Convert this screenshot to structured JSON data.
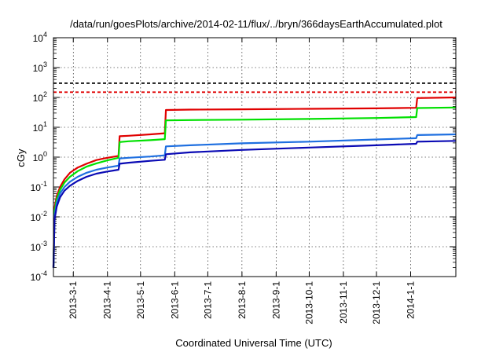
{
  "chart_data": {
    "type": "line",
    "title": "/data/run/goesPlots/archive/2014-02-11/flux/../bryn/366daysEarthAccumulated.plot",
    "xlabel": "Coordinated Universal Time (UTC)",
    "ylabel": "cGy",
    "y_scale": "log",
    "ylim": [
      0.0001,
      10000
    ],
    "y_ticks": [
      {
        "value": 0.0001,
        "base": "10",
        "exp": "-4"
      },
      {
        "value": 0.001,
        "base": "10",
        "exp": "-3"
      },
      {
        "value": 0.01,
        "base": "10",
        "exp": "-2"
      },
      {
        "value": 0.1,
        "base": "10",
        "exp": "-1"
      },
      {
        "value": 1,
        "base": "10",
        "exp": "0"
      },
      {
        "value": 10,
        "base": "10",
        "exp": "1"
      },
      {
        "value": 100,
        "base": "10",
        "exp": "2"
      },
      {
        "value": 1000,
        "base": "10",
        "exp": "3"
      },
      {
        "value": 10000,
        "base": "10",
        "exp": "4"
      }
    ],
    "xlim": [
      "2013-02-11",
      "2014-02-11"
    ],
    "x_ticks": [
      "2013-3-1",
      "2013-4-1",
      "2013-5-1",
      "2013-6-1",
      "2013-7-1",
      "2013-8-1",
      "2013-9-1",
      "2013-10-1",
      "2013-11-1",
      "2013-12-1",
      "2014-1-1"
    ],
    "x_tick_dates": [
      "2013-03-01",
      "2013-04-01",
      "2013-05-01",
      "2013-06-01",
      "2013-07-01",
      "2013-08-01",
      "2013-09-01",
      "2013-10-01",
      "2013-11-01",
      "2013-12-01",
      "2014-01-01"
    ],
    "grid": true,
    "reference_lines": [
      {
        "y": 300,
        "color": "#000000",
        "style": "dashed"
      },
      {
        "y": 150,
        "color": "#e00000",
        "style": "dashed"
      }
    ],
    "series": [
      {
        "color": "#e00000",
        "x": [
          "2013-02-11",
          "2013-02-12",
          "2013-02-14",
          "2013-02-17",
          "2013-02-21",
          "2013-02-26",
          "2013-03-05",
          "2013-03-13",
          "2013-03-22",
          "2013-04-01",
          "2013-04-11",
          "2013-04-12",
          "2013-04-20",
          "2013-05-10",
          "2013-05-23",
          "2013-05-24",
          "2013-06-15",
          "2013-08-01",
          "2013-10-01",
          "2013-12-01",
          "2014-01-06",
          "2014-01-07",
          "2014-02-11"
        ],
        "y": [
          0.0002,
          0.02,
          0.05,
          0.1,
          0.18,
          0.3,
          0.45,
          0.6,
          0.8,
          0.95,
          1.1,
          5.0,
          5.2,
          5.8,
          6.3,
          38,
          39,
          40,
          41.5,
          43,
          45,
          95,
          100
        ]
      },
      {
        "color": "#00e000",
        "x": [
          "2013-02-11",
          "2013-02-12",
          "2013-02-14",
          "2013-02-17",
          "2013-02-21",
          "2013-02-26",
          "2013-03-05",
          "2013-03-13",
          "2013-03-22",
          "2013-04-01",
          "2013-04-11",
          "2013-04-12",
          "2013-04-20",
          "2013-05-10",
          "2013-05-23",
          "2013-05-24",
          "2013-06-15",
          "2013-08-01",
          "2013-10-01",
          "2013-12-01",
          "2014-01-06",
          "2014-01-07",
          "2014-02-11"
        ],
        "y": [
          0.0002,
          0.015,
          0.04,
          0.08,
          0.14,
          0.22,
          0.34,
          0.48,
          0.62,
          0.78,
          0.95,
          3.2,
          3.4,
          3.7,
          4.0,
          17,
          17.5,
          18,
          19,
          20.5,
          22,
          44,
          46
        ]
      },
      {
        "color": "#1e6fe0",
        "x": [
          "2013-02-11",
          "2013-02-12",
          "2013-02-14",
          "2013-02-17",
          "2013-02-21",
          "2013-02-26",
          "2013-03-05",
          "2013-03-13",
          "2013-03-22",
          "2013-04-01",
          "2013-04-11",
          "2013-04-12",
          "2013-04-20",
          "2013-05-10",
          "2013-05-23",
          "2013-05-24",
          "2013-06-15",
          "2013-08-01",
          "2013-10-01",
          "2013-12-01",
          "2014-01-06",
          "2014-01-07",
          "2014-02-11"
        ],
        "y": [
          0.0002,
          0.01,
          0.03,
          0.06,
          0.1,
          0.15,
          0.22,
          0.3,
          0.38,
          0.45,
          0.52,
          0.9,
          0.95,
          1.05,
          1.15,
          2.3,
          2.5,
          2.9,
          3.3,
          3.9,
          4.3,
          5.5,
          5.8
        ]
      },
      {
        "color": "#0a0ab4",
        "x": [
          "2013-02-11",
          "2013-02-12",
          "2013-02-14",
          "2013-02-17",
          "2013-02-21",
          "2013-02-26",
          "2013-03-05",
          "2013-03-13",
          "2013-03-22",
          "2013-04-01",
          "2013-04-11",
          "2013-04-12",
          "2013-04-20",
          "2013-05-10",
          "2013-05-23",
          "2013-05-24",
          "2013-06-15",
          "2013-08-01",
          "2013-10-01",
          "2013-12-01",
          "2014-01-06",
          "2014-01-07",
          "2014-02-11"
        ],
        "y": [
          0.0002,
          0.008,
          0.022,
          0.045,
          0.075,
          0.11,
          0.16,
          0.22,
          0.28,
          0.33,
          0.38,
          0.6,
          0.65,
          0.75,
          0.82,
          1.25,
          1.45,
          1.75,
          2.1,
          2.5,
          2.8,
          3.3,
          3.5
        ]
      }
    ]
  }
}
